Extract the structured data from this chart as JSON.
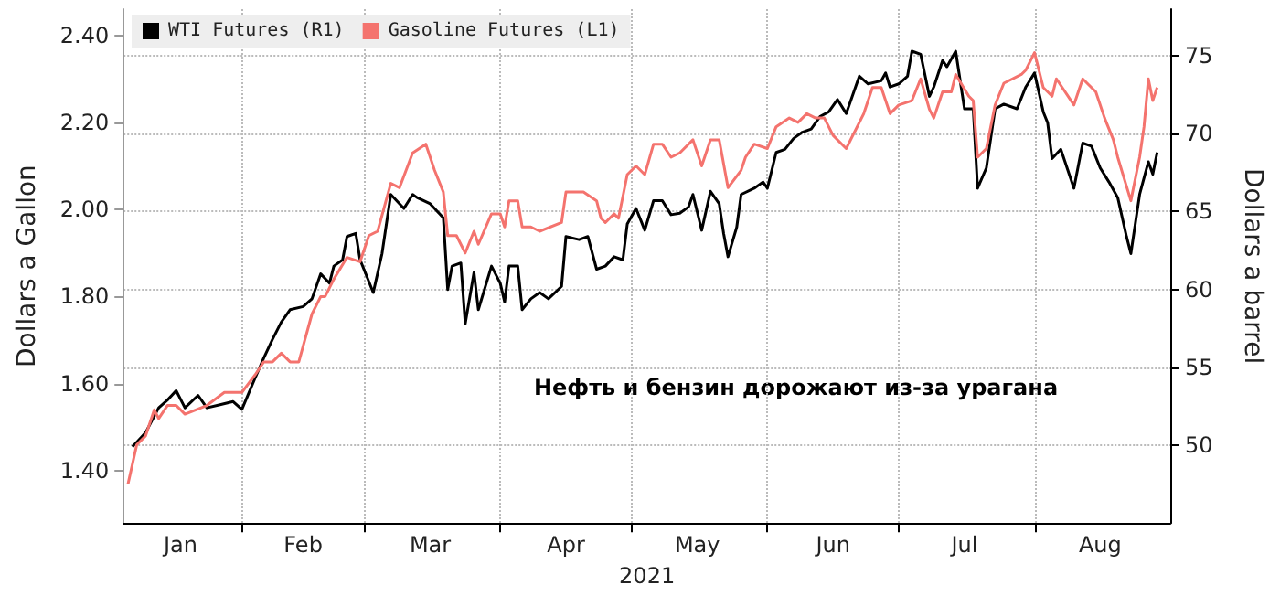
{
  "chart_data": {
    "type": "line",
    "xlabel": "2021",
    "ylabel": "Dollars a Gallon",
    "y2label": "Dollars a barrel",
    "annotations": [
      "Нефть и бензин дорожают из-за урагана"
    ],
    "legend": "top left",
    "grid": true,
    "marker": "none",
    "line_style": "solid",
    "xlim": [
      "2021-01-05",
      "2021-09-01"
    ],
    "xticks": [
      {
        "value": "2021-01-18",
        "label": "Jan"
      },
      {
        "value": "2021-02-01",
        "label": null
      },
      {
        "value": "2021-02-15",
        "label": "Feb"
      },
      {
        "value": "2021-03-01",
        "label": null
      },
      {
        "value": "2021-03-16",
        "label": "Mar"
      },
      {
        "value": "2021-04-01",
        "label": null
      },
      {
        "value": "2021-04-16",
        "label": "Apr"
      },
      {
        "value": "2021-05-01",
        "label": null
      },
      {
        "value": "2021-05-16",
        "label": "May"
      },
      {
        "value": "2021-06-01",
        "label": null
      },
      {
        "value": "2021-06-16",
        "label": "Jun"
      },
      {
        "value": "2021-07-01",
        "label": null
      },
      {
        "value": "2021-07-16",
        "label": "Jul"
      },
      {
        "value": "2021-08-01",
        "label": null
      },
      {
        "value": "2021-08-16",
        "label": "Aug"
      }
    ],
    "ylim": [
      1.28,
      2.46
    ],
    "yticks": [
      {
        "value": 1.4,
        "label": "1.40"
      },
      {
        "value": 1.6,
        "label": "1.60"
      },
      {
        "value": 1.8,
        "label": "1.80"
      },
      {
        "value": 2.0,
        "label": "2.00"
      },
      {
        "value": 2.2,
        "label": "2.20"
      },
      {
        "value": 2.4,
        "label": "2.40"
      }
    ],
    "y2lim": [
      45,
      78
    ],
    "y2ticks": [
      50,
      55,
      60,
      65,
      70,
      75
    ],
    "series": [
      {
        "name": "WTI Futures (R1)",
        "color": "#000000",
        "axis": "y2",
        "x": [
          "2021-01-07",
          "2021-01-09",
          "2021-01-10",
          "2021-01-13",
          "2021-01-15",
          "2021-01-16",
          "2021-01-17",
          "2021-01-19",
          "2021-01-22",
          "2021-01-24",
          "2021-01-27",
          "2021-01-30",
          "2021-02-01",
          "2021-02-04",
          "2021-02-06",
          "2021-02-08",
          "2021-02-10",
          "2021-02-12",
          "2021-02-15",
          "2021-02-17",
          "2021-02-19",
          "2021-02-21",
          "2021-02-22",
          "2021-02-24",
          "2021-02-25",
          "2021-02-27",
          "2021-02-28",
          "2021-03-03",
          "2021-03-05",
          "2021-03-07",
          "2021-03-10",
          "2021-03-12",
          "2021-03-13",
          "2021-03-16",
          "2021-03-19",
          "2021-03-20",
          "2021-03-21",
          "2021-03-23",
          "2021-03-24",
          "2021-03-26",
          "2021-03-27",
          "2021-03-30",
          "2021-04-01",
          "2021-04-02",
          "2021-04-03",
          "2021-04-05",
          "2021-04-06",
          "2021-04-08",
          "2021-04-10",
          "2021-04-12",
          "2021-04-15",
          "2021-04-16",
          "2021-04-19",
          "2021-04-21",
          "2021-04-23",
          "2021-04-25",
          "2021-04-27",
          "2021-04-29",
          "2021-04-30",
          "2021-05-02",
          "2021-05-04",
          "2021-05-06",
          "2021-05-08",
          "2021-05-10",
          "2021-05-12",
          "2021-05-14",
          "2021-05-15",
          "2021-05-17",
          "2021-05-19",
          "2021-05-21",
          "2021-05-22",
          "2021-05-23",
          "2021-05-25",
          "2021-05-26",
          "2021-05-29",
          "2021-05-31",
          "2021-06-01",
          "2021-06-03",
          "2021-06-05",
          "2021-06-07",
          "2021-06-09",
          "2021-06-11",
          "2021-06-13",
          "2021-06-15",
          "2021-06-17",
          "2021-06-19",
          "2021-06-22",
          "2021-06-24",
          "2021-06-27",
          "2021-06-28",
          "2021-06-29",
          "2021-07-01",
          "2021-07-03",
          "2021-07-04",
          "2021-07-06",
          "2021-07-08",
          "2021-07-09",
          "2021-07-11",
          "2021-07-12",
          "2021-07-14",
          "2021-07-16",
          "2021-07-18",
          "2021-07-19",
          "2021-07-21",
          "2021-07-23",
          "2021-07-25",
          "2021-07-28",
          "2021-07-30",
          "2021-08-01",
          "2021-08-03",
          "2021-08-04",
          "2021-08-05",
          "2021-08-07",
          "2021-08-10",
          "2021-08-12",
          "2021-08-14",
          "2021-08-16",
          "2021-08-18",
          "2021-08-20",
          "2021-08-22",
          "2021-08-23",
          "2021-08-25",
          "2021-08-27",
          "2021-08-28",
          "2021-08-29"
        ],
        "values": [
          49.9,
          50.5,
          50.8,
          52.4,
          52.9,
          53.2,
          53.5,
          52.4,
          53.2,
          52.4,
          52.6,
          52.8,
          52.3,
          54.3,
          55.6,
          56.8,
          57.9,
          58.7,
          58.9,
          59.4,
          61.0,
          60.4,
          61.5,
          61.9,
          63.4,
          63.6,
          61.9,
          59.8,
          62.3,
          66.1,
          65.2,
          66.1,
          65.9,
          65.5,
          64.6,
          60.0,
          61.5,
          61.7,
          57.8,
          61.1,
          58.7,
          61.5,
          60.4,
          59.2,
          61.5,
          61.5,
          58.7,
          59.4,
          59.8,
          59.4,
          60.2,
          63.4,
          63.2,
          63.4,
          61.3,
          61.5,
          62.1,
          61.9,
          64.2,
          65.2,
          63.8,
          65.7,
          65.7,
          64.8,
          64.9,
          65.3,
          66.1,
          63.8,
          66.3,
          65.5,
          63.6,
          62.1,
          64.0,
          66.1,
          66.5,
          66.9,
          66.5,
          68.8,
          69.0,
          69.7,
          70.1,
          70.3,
          71.1,
          71.4,
          72.2,
          71.3,
          73.7,
          73.2,
          73.4,
          73.9,
          73.0,
          73.2,
          73.7,
          75.3,
          75.1,
          72.4,
          73.0,
          74.7,
          74.3,
          75.3,
          71.6,
          71.6,
          66.5,
          67.8,
          71.6,
          71.9,
          71.6,
          73.0,
          73.9,
          71.4,
          70.7,
          68.4,
          69.0,
          66.5,
          69.4,
          69.2,
          67.8,
          66.9,
          65.9,
          63.4,
          62.3,
          66.1,
          68.2,
          67.4,
          68.8
        ]
      },
      {
        "name": "Gasoline Futures (L1)",
        "color": "#f4736e",
        "x": [
          "2021-01-06",
          "2021-01-08",
          "2021-01-10",
          "2021-01-12",
          "2021-01-13",
          "2021-01-15",
          "2021-01-17",
          "2021-01-19",
          "2021-01-24",
          "2021-01-28",
          "2021-01-31",
          "2021-02-01",
          "2021-02-04",
          "2021-02-06",
          "2021-02-08",
          "2021-02-10",
          "2021-02-12",
          "2021-02-14",
          "2021-02-17",
          "2021-02-19",
          "2021-02-20",
          "2021-02-22",
          "2021-02-25",
          "2021-02-28",
          "2021-03-02",
          "2021-03-04",
          "2021-03-07",
          "2021-03-09",
          "2021-03-12",
          "2021-03-15",
          "2021-03-17",
          "2021-03-19",
          "2021-03-20",
          "2021-03-22",
          "2021-03-24",
          "2021-03-26",
          "2021-03-27",
          "2021-03-30",
          "2021-04-01",
          "2021-04-02",
          "2021-04-03",
          "2021-04-05",
          "2021-04-06",
          "2021-04-08",
          "2021-04-10",
          "2021-04-15",
          "2021-04-16",
          "2021-04-20",
          "2021-04-23",
          "2021-04-24",
          "2021-04-25",
          "2021-04-27",
          "2021-04-28",
          "2021-04-30",
          "2021-05-02",
          "2021-05-04",
          "2021-05-06",
          "2021-05-08",
          "2021-05-10",
          "2021-05-12",
          "2021-05-15",
          "2021-05-17",
          "2021-05-19",
          "2021-05-21",
          "2021-05-23",
          "2021-05-26",
          "2021-05-27",
          "2021-05-29",
          "2021-06-01",
          "2021-06-03",
          "2021-06-06",
          "2021-06-08",
          "2021-06-10",
          "2021-06-12",
          "2021-06-14",
          "2021-06-16",
          "2021-06-19",
          "2021-06-23",
          "2021-06-25",
          "2021-06-27",
          "2021-06-29",
          "2021-07-01",
          "2021-07-04",
          "2021-07-06",
          "2021-07-08",
          "2021-07-09",
          "2021-07-11",
          "2021-07-13",
          "2021-07-14",
          "2021-07-17",
          "2021-07-18",
          "2021-07-19",
          "2021-07-21",
          "2021-07-23",
          "2021-07-25",
          "2021-07-29",
          "2021-07-30",
          "2021-08-01",
          "2021-08-03",
          "2021-08-05",
          "2021-08-06",
          "2021-08-10",
          "2021-08-12",
          "2021-08-15",
          "2021-08-17",
          "2021-08-19",
          "2021-08-20",
          "2021-08-23",
          "2021-08-25",
          "2021-08-26",
          "2021-08-27",
          "2021-08-28",
          "2021-08-29"
        ],
        "values": [
          1.37,
          1.46,
          1.48,
          1.54,
          1.52,
          1.55,
          1.55,
          1.53,
          1.55,
          1.58,
          1.58,
          1.58,
          1.62,
          1.65,
          1.65,
          1.67,
          1.65,
          1.65,
          1.76,
          1.8,
          1.8,
          1.84,
          1.89,
          1.88,
          1.94,
          1.95,
          2.06,
          2.05,
          2.13,
          2.15,
          2.09,
          2.04,
          1.94,
          1.94,
          1.9,
          1.95,
          1.92,
          1.99,
          1.99,
          1.96,
          2.02,
          2.02,
          1.96,
          1.96,
          1.95,
          1.97,
          2.04,
          2.04,
          2.02,
          1.98,
          1.97,
          1.99,
          1.98,
          2.08,
          2.1,
          2.08,
          2.15,
          2.15,
          2.12,
          2.13,
          2.16,
          2.1,
          2.16,
          2.16,
          2.05,
          2.09,
          2.12,
          2.15,
          2.14,
          2.19,
          2.21,
          2.2,
          2.22,
          2.21,
          2.21,
          2.17,
          2.14,
          2.22,
          2.28,
          2.28,
          2.22,
          2.24,
          2.25,
          2.3,
          2.23,
          2.21,
          2.27,
          2.27,
          2.31,
          2.26,
          2.25,
          2.12,
          2.14,
          2.24,
          2.29,
          2.31,
          2.32,
          2.36,
          2.28,
          2.26,
          2.3,
          2.24,
          2.3,
          2.27,
          2.21,
          2.16,
          2.12,
          2.02,
          2.12,
          2.19,
          2.3,
          2.25,
          2.28
        ]
      }
    ]
  }
}
